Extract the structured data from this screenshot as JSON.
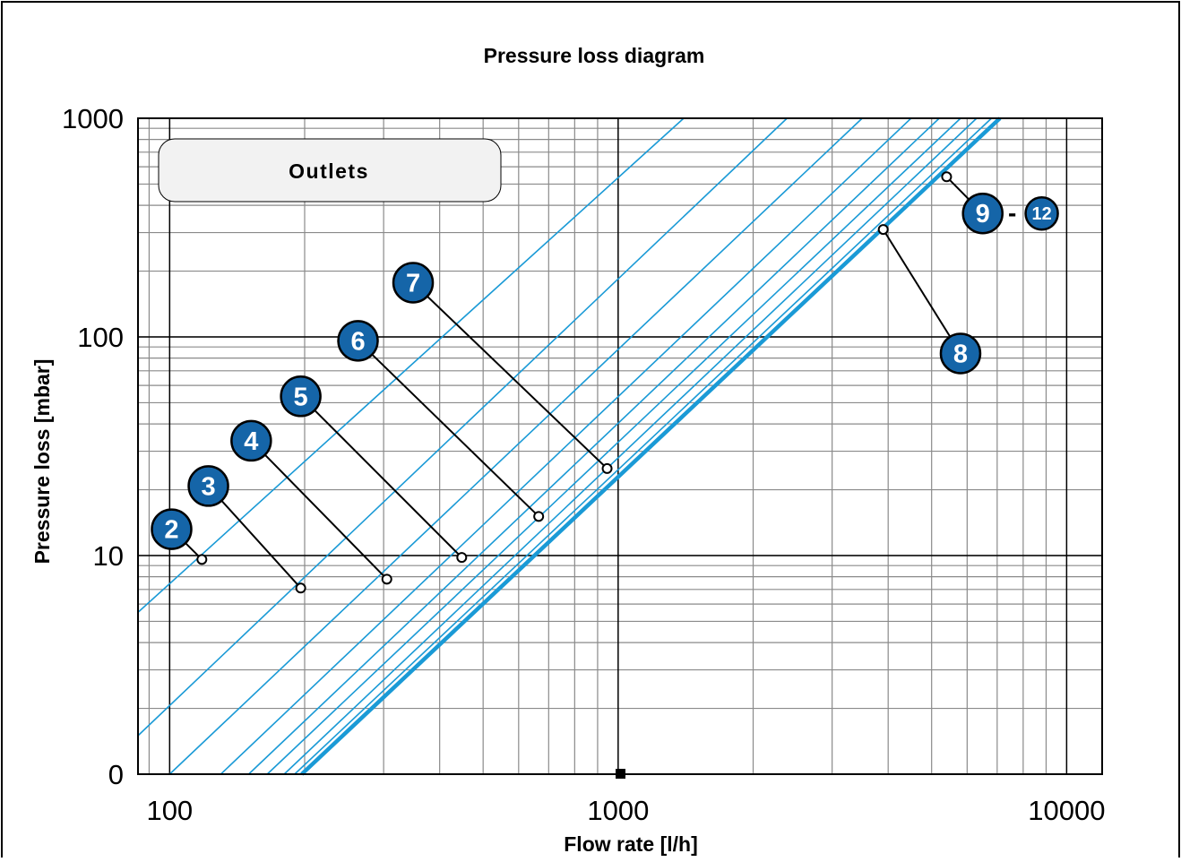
{
  "chart_data": {
    "type": "line",
    "title": "Pressure loss diagram",
    "xlabel": "Flow rate [l/h]",
    "ylabel": "Pressure loss [mbar]",
    "x_scale": "log",
    "y_scale": "log",
    "xlim": [
      85,
      12000
    ],
    "ylim": [
      1,
      1000
    ],
    "x_ticks": [
      {
        "value": 100,
        "label": "100"
      },
      {
        "value": 1000,
        "label": "1000"
      },
      {
        "value": 10000,
        "label": "10000"
      }
    ],
    "y_ticks": [
      {
        "value": 1,
        "label": "0"
      },
      {
        "value": 10,
        "label": "10"
      },
      {
        "value": 100,
        "label": "100"
      },
      {
        "value": 1000,
        "label": "1000"
      }
    ],
    "grid": true,
    "legend_box": {
      "label": "Outlets",
      "placement": "top-left"
    },
    "line_color": "#1a9ad6",
    "badge_color": "#1565a8",
    "series": [
      {
        "x": [
          85,
          1400
        ],
        "y": [
          5.5,
          1000
        ]
      },
      {
        "x": [
          85,
          2380
        ],
        "y": [
          1.5,
          1000
        ]
      },
      {
        "x": [
          100,
          3500
        ],
        "y": [
          1.0,
          1000
        ]
      },
      {
        "x": [
          130,
          4500
        ],
        "y": [
          1.0,
          1000
        ]
      },
      {
        "x": [
          150,
          5200
        ],
        "y": [
          1.0,
          1000
        ]
      },
      {
        "x": [
          165,
          5800
        ],
        "y": [
          1.0,
          1000
        ]
      },
      {
        "x": [
          180,
          6300
        ],
        "y": [
          1.0,
          1000
        ]
      },
      {
        "x": [
          190,
          6800
        ],
        "y": [
          1.0,
          1000
        ]
      },
      {
        "x": [
          197,
          7100
        ],
        "y": [
          1.0,
          1000
        ],
        "bold": true
      }
    ],
    "annotations": [
      {
        "label": "2",
        "x": 118,
        "y": 9.6,
        "badge_x": 101,
        "badge_y": 13.2
      },
      {
        "label": "3",
        "x": 196,
        "y": 7.1,
        "badge_x": 122,
        "badge_y": 20.8
      },
      {
        "label": "4",
        "x": 305,
        "y": 7.8,
        "badge_x": 152,
        "badge_y": 33.5
      },
      {
        "label": "5",
        "x": 448,
        "y": 9.8,
        "badge_x": 196,
        "badge_y": 53.5
      },
      {
        "label": "6",
        "x": 665,
        "y": 15.1,
        "badge_x": 263,
        "badge_y": 96
      },
      {
        "label": "7",
        "x": 945,
        "y": 25,
        "badge_x": 349,
        "badge_y": 177
      },
      {
        "label": "8",
        "x": 3900,
        "y": 310,
        "badge_x": 5800,
        "badge_y": 84
      },
      {
        "label": "9",
        "x": 5400,
        "y": 540,
        "badge_x": 6500,
        "badge_y": 367,
        "range_end": "12",
        "range_end_x": 8800
      }
    ]
  }
}
